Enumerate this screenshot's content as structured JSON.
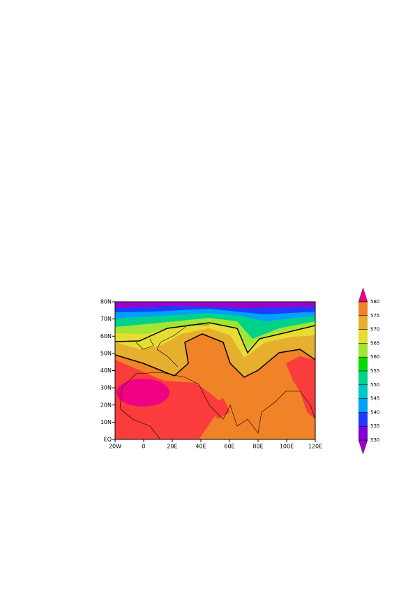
{
  "map": {
    "x_labels": [
      "20W",
      "0",
      "20E",
      "40E",
      "60E",
      "80E",
      "100E",
      "120E"
    ],
    "y_labels": [
      "EQ",
      "10N",
      "20N",
      "30N",
      "40N",
      "50N",
      "60N",
      "70N",
      "80N"
    ],
    "colorbar": {
      "labels": [
        "530",
        "535",
        "540",
        "545",
        "550",
        "555",
        "560",
        "565",
        "570",
        "575",
        "580"
      ]
    }
  }
}
